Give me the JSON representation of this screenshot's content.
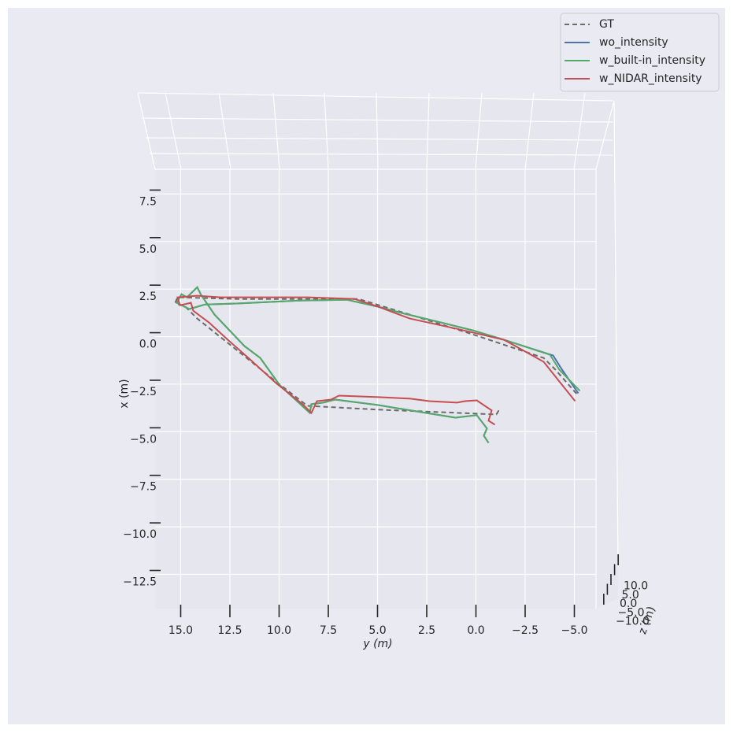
{
  "chart_data": {
    "type": "line3d",
    "xlabel": "y (m)",
    "ylabel": "x (m)",
    "zlabel": "z (m)",
    "xlim": [
      16.3,
      -6.1
    ],
    "ylim": [
      -14.3,
      8.8
    ],
    "zlim": [
      -12,
      12
    ],
    "xticks": [
      {
        "value": 15,
        "label": "15.0"
      },
      {
        "value": 12.5,
        "label": "12.5"
      },
      {
        "value": 10,
        "label": "10.0"
      },
      {
        "value": 7.5,
        "label": "7.5"
      },
      {
        "value": 5,
        "label": "5.0"
      },
      {
        "value": 2.5,
        "label": "2.5"
      },
      {
        "value": 0,
        "label": "0.0"
      },
      {
        "value": -2.5,
        "label": "−2.5"
      },
      {
        "value": -5,
        "label": "−5.0"
      }
    ],
    "yticks": [
      {
        "value": 7.5,
        "label": "7.5"
      },
      {
        "value": 5,
        "label": "5.0"
      },
      {
        "value": 2.5,
        "label": "2.5"
      },
      {
        "value": 0,
        "label": "0.0"
      },
      {
        "value": -2.5,
        "label": "−2.5"
      },
      {
        "value": -5,
        "label": "−5.0"
      },
      {
        "value": -7.5,
        "label": "−7.5"
      },
      {
        "value": -10,
        "label": "−10.0"
      },
      {
        "value": -12.5,
        "label": "−12.5"
      }
    ],
    "zticks": [
      {
        "value": 10,
        "label": "10.0"
      },
      {
        "value": 5,
        "label": "5.0"
      },
      {
        "value": 0,
        "label": "0.0"
      },
      {
        "value": -5,
        "label": "−5.0"
      },
      {
        "value": -10,
        "label": "−10.0"
      }
    ],
    "grid": true,
    "legend": "upper right",
    "series": [
      {
        "name": "GT",
        "color": "#6b6b6b",
        "dashed": true,
        "x": [
          -1.16,
          -1.04,
          1.76,
          4.96,
          8.56,
          10.16,
          12.16,
          14.16,
          14.76,
          15.28,
          15.16,
          12.16,
          5.96,
          3.36,
          0.16,
          -3.44,
          -4.04,
          -5.16
        ],
        "values": [
          -3.88,
          -4.09,
          -3.97,
          -3.84,
          -3.64,
          -2.36,
          -0.7,
          0.95,
          1.57,
          1.78,
          2.07,
          1.98,
          1.98,
          1.16,
          0.12,
          -1.12,
          -1.74,
          -3.06
        ]
      },
      {
        "name": "wo_intensity",
        "color": "#4c72b0",
        "dashed": false,
        "x": [
          -0.64,
          -0.4,
          -0.56,
          -0.04,
          1.04,
          2.56,
          4.96,
          7.16,
          7.76,
          8.36,
          8.44,
          9.96,
          10.96,
          11.76,
          13.28,
          13.96,
          14.16,
          14.68,
          14.96,
          15.2,
          14.56,
          13.76,
          12.16,
          8.96,
          6.56,
          4.96,
          3.76,
          1.76,
          0.16,
          -1.44,
          -3.92,
          -4.32,
          -5.2
        ],
        "values": [
          -5.58,
          -5.21,
          -4.83,
          -4.13,
          -4.26,
          -4.01,
          -3.6,
          -3.31,
          -3.47,
          -3.55,
          -4.01,
          -2.56,
          -1.12,
          -0.5,
          1.16,
          2.19,
          2.6,
          2.07,
          2.23,
          1.78,
          1.45,
          1.69,
          1.74,
          1.9,
          1.94,
          1.57,
          1.24,
          0.74,
          0.33,
          -0.17,
          -0.99,
          -1.65,
          -2.98
        ]
      },
      {
        "name": "w_built-in_intensity",
        "color": "#55a868",
        "dashed": false,
        "x": [
          -0.64,
          -0.4,
          -0.56,
          -0.04,
          1.04,
          2.56,
          4.96,
          7.16,
          7.76,
          8.36,
          8.44,
          9.96,
          10.96,
          11.76,
          13.28,
          13.96,
          14.16,
          14.68,
          14.96,
          15.2,
          14.56,
          13.76,
          12.16,
          8.96,
          6.56,
          4.96,
          3.76,
          1.76,
          0.16,
          -1.44,
          -3.76,
          -4.24,
          -5.28
        ],
        "values": [
          -5.58,
          -5.21,
          -4.83,
          -4.13,
          -4.26,
          -4.01,
          -3.6,
          -3.31,
          -3.47,
          -3.55,
          -4.01,
          -2.56,
          -1.12,
          -0.5,
          1.16,
          2.19,
          2.6,
          2.07,
          2.23,
          1.78,
          1.45,
          1.69,
          1.74,
          1.9,
          1.94,
          1.57,
          1.24,
          0.74,
          0.33,
          -0.17,
          -0.95,
          -1.74,
          -2.85
        ]
      },
      {
        "name": "w_NIDAR_intensity",
        "color": "#c44e52",
        "dashed": false,
        "x": [
          -0.96,
          -0.64,
          -0.8,
          -0.04,
          0.56,
          0.96,
          2.36,
          3.36,
          4.96,
          6.96,
          7.36,
          8.08,
          8.36,
          8.76,
          10.16,
          11.56,
          12.56,
          13.56,
          14.36,
          14.48,
          15.04,
          15.16,
          14.16,
          12.96,
          10.96,
          8.56,
          6.16,
          4.96,
          3.36,
          0.96,
          -1.44,
          -3.44,
          -4.24,
          -5.04
        ],
        "values": [
          -4.63,
          -4.42,
          -3.88,
          -3.35,
          -3.39,
          -3.47,
          -3.39,
          -3.26,
          -3.18,
          -3.1,
          -3.31,
          -3.39,
          -4.01,
          -3.6,
          -2.44,
          -1.12,
          -0.21,
          0.74,
          1.36,
          1.78,
          1.65,
          2.07,
          2.15,
          2.07,
          2.07,
          2.07,
          1.98,
          1.57,
          0.95,
          0.41,
          -0.17,
          -1.32,
          -2.36,
          -3.39
        ]
      }
    ]
  }
}
